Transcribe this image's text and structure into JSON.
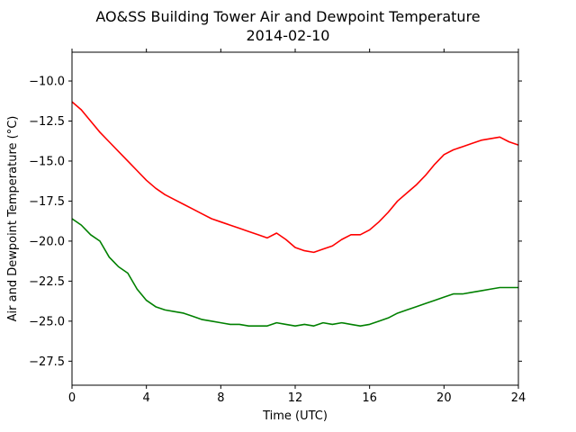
{
  "chart_data": {
    "type": "line",
    "title": "AO&SS Building Tower Air and Dewpoint Temperature",
    "subtitle": "2014-02-10",
    "xlabel": "Time (UTC)",
    "ylabel": "Air and Dewpoint Temperature (°C)",
    "xlim": [
      0,
      24
    ],
    "ylim": [
      -29,
      -8.2
    ],
    "xticks": [
      0,
      4,
      8,
      12,
      16,
      20,
      24
    ],
    "yticks": [
      -27.5,
      -25.0,
      -22.5,
      -20.0,
      -17.5,
      -15.0,
      -12.5,
      -10.0
    ],
    "ytick_labels": [
      "−27.5",
      "−25.0",
      "−22.5",
      "−20.0",
      "−17.5",
      "−15.0",
      "−12.5",
      "−10.0"
    ],
    "grid": false,
    "series": [
      {
        "color": "#ff0000",
        "x": [
          0,
          0.5,
          1,
          1.5,
          2,
          2.5,
          3,
          3.5,
          4,
          4.5,
          5,
          5.5,
          6,
          6.5,
          7,
          7.5,
          8,
          8.5,
          9,
          9.5,
          10,
          10.5,
          11,
          11.5,
          12,
          12.5,
          13,
          13.5,
          14,
          14.5,
          15,
          15.5,
          16,
          16.5,
          17,
          17.5,
          18,
          18.5,
          19,
          19.5,
          20,
          20.5,
          21,
          21.5,
          22,
          22.5,
          23,
          23.5,
          24
        ],
        "y": [
          -11.3,
          -11.8,
          -12.5,
          -13.2,
          -13.8,
          -14.4,
          -15.0,
          -15.6,
          -16.2,
          -16.7,
          -17.1,
          -17.4,
          -17.7,
          -18.0,
          -18.3,
          -18.6,
          -18.8,
          -19.0,
          -19.2,
          -19.4,
          -19.6,
          -19.8,
          -19.5,
          -19.9,
          -20.4,
          -20.6,
          -20.7,
          -20.5,
          -20.3,
          -19.9,
          -19.6,
          -19.6,
          -19.3,
          -18.8,
          -18.2,
          -17.5,
          -17.0,
          -16.5,
          -15.9,
          -15.2,
          -14.6,
          -14.3,
          -14.1,
          -13.9,
          -13.7,
          -13.6,
          -13.5,
          -13.8,
          -14.0
        ]
      },
      {
        "color": "#008000",
        "x": [
          0,
          0.5,
          1,
          1.5,
          2,
          2.5,
          3,
          3.5,
          4,
          4.5,
          5,
          5.5,
          6,
          6.5,
          7,
          7.5,
          8,
          8.5,
          9,
          9.5,
          10,
          10.5,
          11,
          11.5,
          12,
          12.5,
          13,
          13.5,
          14,
          14.5,
          15,
          15.5,
          16,
          16.5,
          17,
          17.5,
          18,
          18.5,
          19,
          19.5,
          20,
          20.5,
          21,
          21.5,
          22,
          22.5,
          23,
          23.5,
          24
        ],
        "y": [
          -18.6,
          -19.0,
          -19.6,
          -20.0,
          -21.0,
          -21.6,
          -22.0,
          -23.0,
          -23.7,
          -24.1,
          -24.3,
          -24.4,
          -24.5,
          -24.7,
          -24.9,
          -25.0,
          -25.1,
          -25.2,
          -25.2,
          -25.3,
          -25.3,
          -25.3,
          -25.1,
          -25.2,
          -25.3,
          -25.2,
          -25.3,
          -25.1,
          -25.2,
          -25.1,
          -25.2,
          -25.3,
          -25.2,
          -25.0,
          -24.8,
          -24.5,
          -24.3,
          -24.1,
          -23.9,
          -23.7,
          -23.5,
          -23.3,
          -23.3,
          -23.2,
          -23.1,
          -23.0,
          -22.9,
          -22.9,
          -22.9
        ]
      }
    ]
  }
}
